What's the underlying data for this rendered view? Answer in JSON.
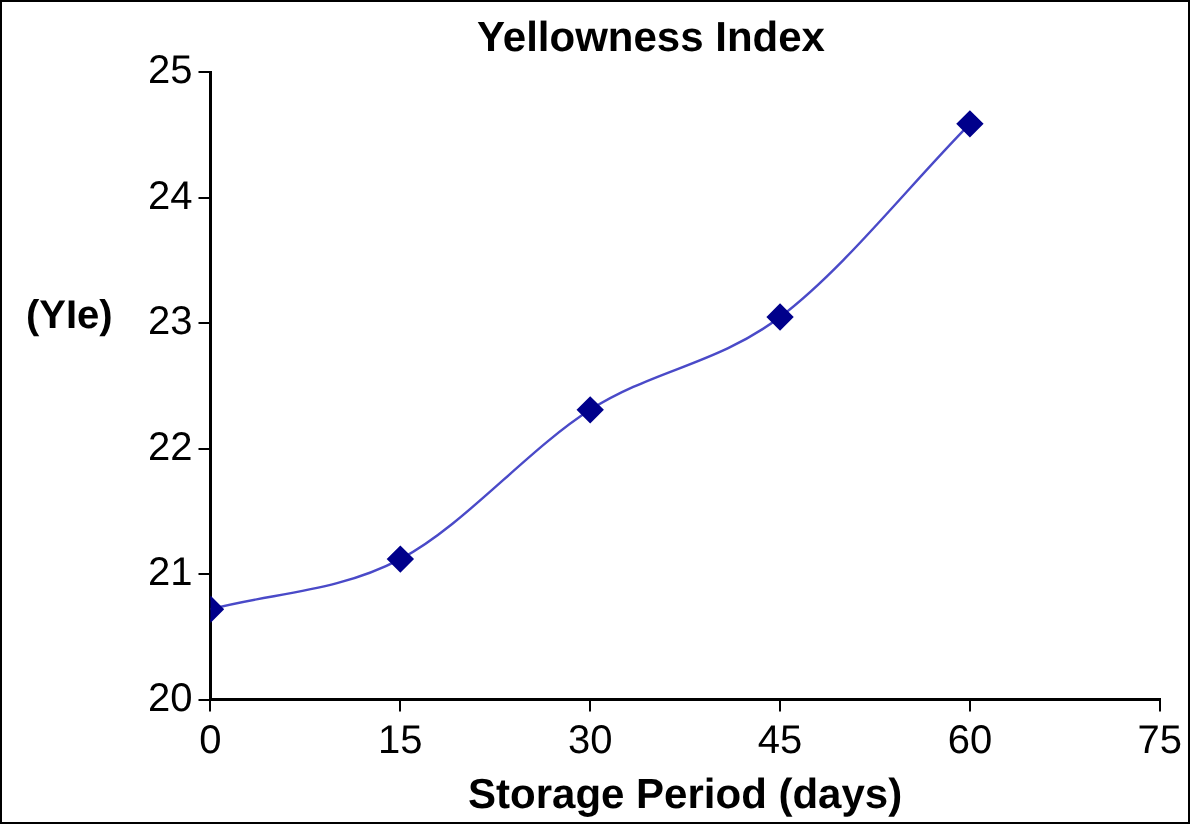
{
  "chart_data": {
    "type": "line",
    "title": "Yellowness Index",
    "xlabel": "Storage Period (days)",
    "ylabel": "(YIe)",
    "x": [
      0,
      15,
      30,
      45,
      60
    ],
    "series": [
      {
        "color": "#00008b",
        "values": [
          20.72,
          21.12,
          22.31,
          23.05,
          24.59
        ]
      }
    ],
    "xlim": [
      0,
      75
    ],
    "xticks": [
      0,
      15,
      30,
      45,
      60,
      75
    ],
    "ylim": [
      20,
      25
    ],
    "yticks": [
      20,
      21,
      22,
      23,
      24,
      25
    ],
    "grid": false,
    "legend": false,
    "marker": "diamond",
    "line_style": "solid"
  }
}
